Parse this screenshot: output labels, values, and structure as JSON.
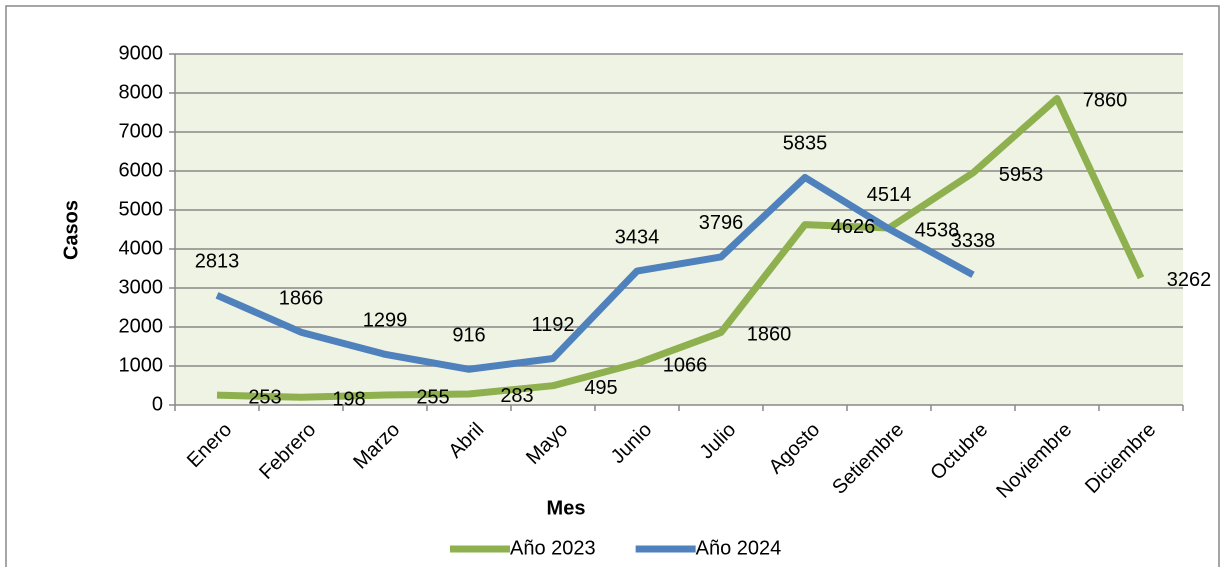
{
  "chart_data": {
    "type": "line",
    "x_label": "Mes",
    "y_label": "Casos",
    "categories": [
      "Enero",
      "Febrero",
      "Marzo",
      "Abril",
      "Mayo",
      "Junio",
      "Julio",
      "Agosto",
      "Setiembre",
      "Octubre",
      "Noviembre",
      "Diciembre"
    ],
    "series": [
      {
        "name": "Año 2023",
        "color": "#8eb04e",
        "values": [
          253,
          198,
          255,
          283,
          495,
          1066,
          1860,
          4626,
          4538,
          5953,
          7860,
          3262
        ]
      },
      {
        "name": "Año 2024",
        "color": "#4f81bd",
        "values": [
          2813,
          1866,
          1299,
          916,
          1192,
          3434,
          3796,
          5835,
          4514,
          3338,
          null,
          null
        ]
      }
    ],
    "ylim": [
      0,
      9000
    ],
    "yticks": [
      0,
      1000,
      2000,
      3000,
      4000,
      5000,
      6000,
      7000,
      8000,
      9000
    ],
    "grid": true,
    "legend": "bottom"
  }
}
